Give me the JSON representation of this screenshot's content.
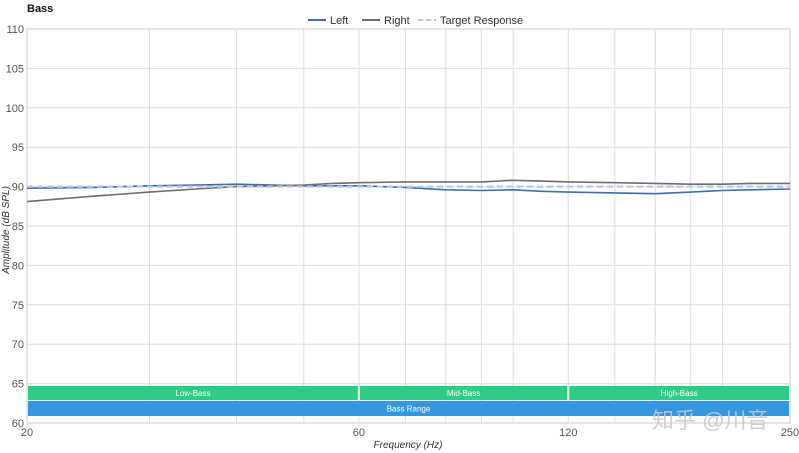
{
  "chart_data": {
    "type": "line",
    "title": "Bass",
    "xlabel": "Frequency (Hz)",
    "ylabel": "Amplitude (dB SPL)",
    "x_scale": "log",
    "xlim": [
      20,
      250
    ],
    "ylim": [
      60,
      110
    ],
    "x_ticks": [
      20,
      60,
      120,
      250
    ],
    "y_ticks": [
      60,
      65,
      70,
      75,
      80,
      85,
      90,
      95,
      100,
      105,
      110
    ],
    "grid": true,
    "legend_position": "top-center",
    "series": [
      {
        "name": "Left",
        "color": "#3a6fb5",
        "dash": "solid",
        "x": [
          20,
          25,
          30,
          35,
          40,
          45,
          50,
          55,
          60,
          70,
          80,
          90,
          100,
          110,
          120,
          140,
          160,
          180,
          200,
          220,
          250
        ],
        "y": [
          89.8,
          89.9,
          90.1,
          90.2,
          90.3,
          90.2,
          90.1,
          90.1,
          90.1,
          89.9,
          89.6,
          89.5,
          89.6,
          89.4,
          89.3,
          89.2,
          89.1,
          89.3,
          89.5,
          89.6,
          89.7
        ]
      },
      {
        "name": "Right",
        "color": "#6e6e6e",
        "dash": "solid",
        "x": [
          20,
          25,
          30,
          35,
          40,
          45,
          50,
          55,
          60,
          70,
          80,
          90,
          100,
          110,
          120,
          140,
          160,
          180,
          200,
          220,
          250
        ],
        "y": [
          88.1,
          88.8,
          89.3,
          89.7,
          90.0,
          90.1,
          90.2,
          90.4,
          90.5,
          90.6,
          90.6,
          90.6,
          90.8,
          90.7,
          90.6,
          90.5,
          90.4,
          90.3,
          90.3,
          90.4,
          90.4
        ]
      },
      {
        "name": "Target Response",
        "color": "#b8c8e8",
        "dash": "dashed",
        "x": [
          20,
          250
        ],
        "y": [
          90.0,
          90.0
        ]
      }
    ],
    "bands": [
      {
        "label": "Low-Bass",
        "from": 20,
        "to": 60,
        "color": "#2ecc85"
      },
      {
        "label": "Mid-Bass",
        "from": 60,
        "to": 120,
        "color": "#2ecc85"
      },
      {
        "label": "High-Bass",
        "from": 120,
        "to": 250,
        "color": "#2ecc85"
      }
    ],
    "range_bar": {
      "label": "Bass Range",
      "from": 20,
      "to": 250,
      "color": "#3597e0"
    }
  },
  "watermark": "知乎 @川音"
}
